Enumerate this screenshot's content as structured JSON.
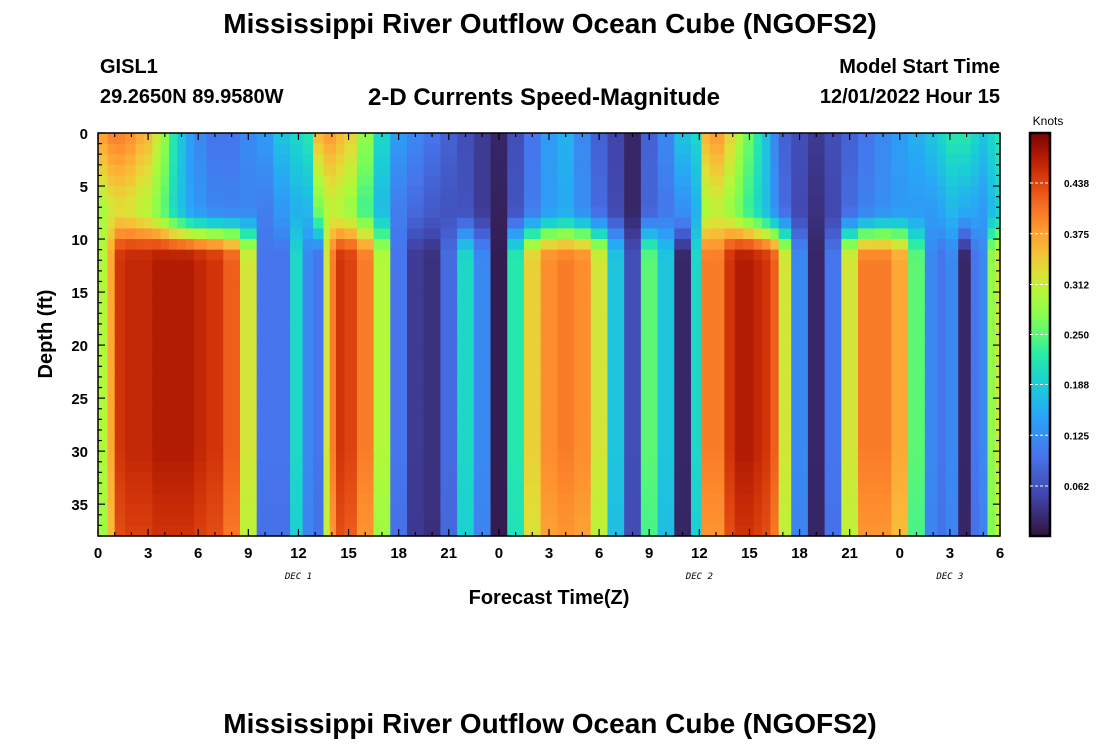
{
  "header": {
    "title": "Mississippi River Outflow Ocean Cube (NGOFS2)",
    "station_id": "GISL1",
    "station_coords": "29.2650N  89.9580W",
    "subtitle": "2-D Currents Speed-Magnitude",
    "model_start_label": "Model Start Time",
    "model_start_value": "12/01/2022 Hour 15"
  },
  "footer": {
    "title": "Mississippi River Outflow Ocean Cube (NGOFS2)"
  },
  "chart_data": {
    "type": "heatmap",
    "title": "2-D Currents Speed-Magnitude",
    "xlabel": "Forecast Time(Z)",
    "ylabel": "Depth (ft)",
    "x_range_hours": [
      0,
      54
    ],
    "x_tick_labels": [
      "0",
      "3",
      "6",
      "9",
      "12",
      "15",
      "18",
      "21",
      "0",
      "3",
      "6",
      "9",
      "12",
      "15",
      "18",
      "21",
      "0",
      "3",
      "6"
    ],
    "date_labels": [
      {
        "label": "DEC 1",
        "at_hour": 12
      },
      {
        "label": "DEC 2",
        "at_hour": 36
      },
      {
        "label": "DEC 3",
        "at_hour": 51
      }
    ],
    "y_range": [
      0,
      38
    ],
    "y_inverted": true,
    "y_tick_labels": [
      "0",
      "5",
      "10",
      "15",
      "20",
      "25",
      "30",
      "35"
    ],
    "colorbar": {
      "label": "Knots",
      "range": [
        0,
        0.5
      ],
      "tick_labels": [
        "0.438",
        "0.375",
        "0.312",
        "0.250",
        "0.188",
        "0.125",
        "0.062"
      ],
      "colormap": "turbo"
    },
    "time_hours": [
      0.4,
      0.75,
      1.25,
      2,
      2.5,
      3,
      3.5,
      4,
      4.5,
      5,
      5.5,
      6,
      7,
      8,
      9,
      10,
      11,
      12,
      12.5,
      13.25,
      13.75,
      14,
      14.5,
      15,
      16,
      17,
      18,
      19,
      20,
      21,
      22,
      23,
      24,
      25,
      26,
      27,
      28,
      29,
      30,
      31,
      32,
      33,
      34,
      35,
      36,
      36.25,
      37,
      38,
      38.25,
      39,
      39.5,
      40,
      40.5,
      41,
      42,
      43,
      44,
      45,
      46,
      47,
      48,
      49,
      50,
      50.5,
      51,
      52,
      52.5,
      53,
      53.5,
      53.9
    ],
    "deep_speed": [
      0.3,
      0.37,
      0.45,
      0.46,
      0.46,
      0.46,
      0.47,
      0.47,
      0.47,
      0.47,
      0.47,
      0.46,
      0.45,
      0.42,
      0.32,
      0.1,
      0.1,
      0.2,
      0.12,
      0.1,
      0.32,
      0.4,
      0.45,
      0.44,
      0.4,
      0.3,
      0.1,
      0.04,
      0.03,
      0.09,
      0.2,
      0.12,
      0.01,
      0.22,
      0.34,
      0.39,
      0.4,
      0.39,
      0.32,
      0.18,
      0.06,
      0.25,
      0.18,
      0.02,
      0.2,
      0.4,
      0.4,
      0.45,
      0.47,
      0.47,
      0.46,
      0.45,
      0.42,
      0.32,
      0.12,
      0.02,
      0.1,
      0.32,
      0.4,
      0.4,
      0.37,
      0.25,
      0.12,
      0.1,
      0.12,
      0.02,
      0.1,
      0.12,
      0.28,
      0.32
    ],
    "surface_speed": [
      0.38,
      0.4,
      0.4,
      0.39,
      0.37,
      0.36,
      0.32,
      0.28,
      0.22,
      0.18,
      0.14,
      0.12,
      0.1,
      0.1,
      0.12,
      0.14,
      0.18,
      0.2,
      0.22,
      0.36,
      0.38,
      0.38,
      0.36,
      0.34,
      0.28,
      0.2,
      0.14,
      0.12,
      0.1,
      0.08,
      0.06,
      0.04,
      0.02,
      0.06,
      0.1,
      0.14,
      0.16,
      0.12,
      0.08,
      0.05,
      0.02,
      0.08,
      0.12,
      0.18,
      0.2,
      0.36,
      0.38,
      0.34,
      0.3,
      0.26,
      0.22,
      0.18,
      0.12,
      0.08,
      0.06,
      0.04,
      0.06,
      0.08,
      0.1,
      0.12,
      0.14,
      0.16,
      0.18,
      0.2,
      0.22,
      0.22,
      0.2,
      0.18,
      0.2,
      0.22
    ]
  }
}
